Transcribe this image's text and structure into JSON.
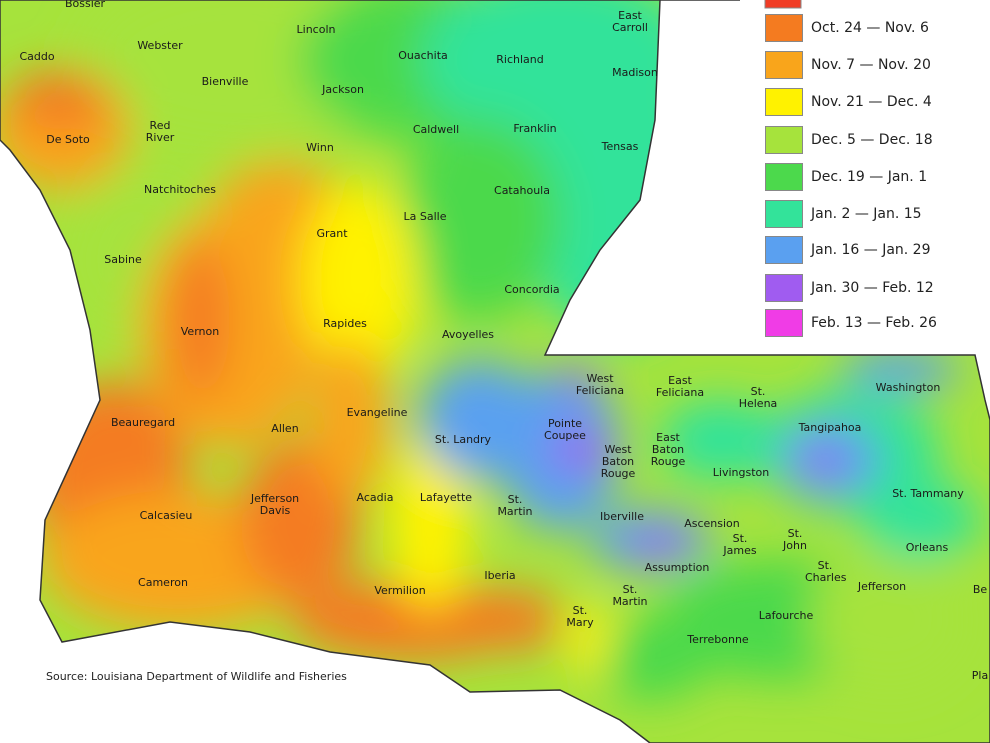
{
  "legend": {
    "items": [
      {
        "label": "Oct. 24 — Nov. 6",
        "color": "#f47b20"
      },
      {
        "label": "Nov. 7 — Nov. 20",
        "color": "#f9a51b"
      },
      {
        "label": "Nov. 21 — Dec. 4",
        "color": "#fff200"
      },
      {
        "label": "Dec. 5 — Dec. 18",
        "color": "#a6e33c"
      },
      {
        "label": "Dec. 19 — Jan. 1",
        "color": "#4cd94c"
      },
      {
        "label": "Jan. 2 — Jan. 15",
        "color": "#33e39a"
      },
      {
        "label": "Jan. 16 — Jan. 29",
        "color": "#5aa0f0"
      },
      {
        "label": "Jan. 30 — Feb. 12",
        "color": "#a05cf0"
      },
      {
        "label": "Feb. 13 — Feb. 26",
        "color": "#f03ce6"
      }
    ]
  },
  "parishes": [
    "Bossier",
    "Webster",
    "Lincoln",
    "Ouachita",
    "Richland",
    "East Carroll",
    "Madison",
    "Caddo",
    "Bienville",
    "Jackson",
    "Red River",
    "De Soto",
    "Winn",
    "Caldwell",
    "Franklin",
    "Tensas",
    "Natchitoches",
    "Catahoula",
    "La Salle",
    "Grant",
    "Sabine",
    "Concordia",
    "Vernon",
    "Rapides",
    "Avoyelles",
    "West Feliciana",
    "East Feliciana",
    "St. Helena",
    "Washington",
    "Beauregard",
    "Allen",
    "Evangeline",
    "St. Landry",
    "Pointe Coupee",
    "West Baton Rouge",
    "East Baton Rouge",
    "Livingston",
    "Tangipahoa",
    "St. Tammany",
    "Jefferson Davis",
    "Acadia",
    "Calcasieu",
    "Lafayette",
    "St. Martin",
    "Iberville",
    "Ascension",
    "St. James",
    "St. John",
    "Orleans",
    "Cameron",
    "Vermilion",
    "Iberia",
    "Assumption",
    "St. Charles",
    "Jefferson",
    "St. Mary",
    "St. Martin",
    "Lafourche",
    "Terrebonne",
    "Be",
    "Pla"
  ],
  "source": "Source: Louisiana Department of Wildlife and Fisheries"
}
